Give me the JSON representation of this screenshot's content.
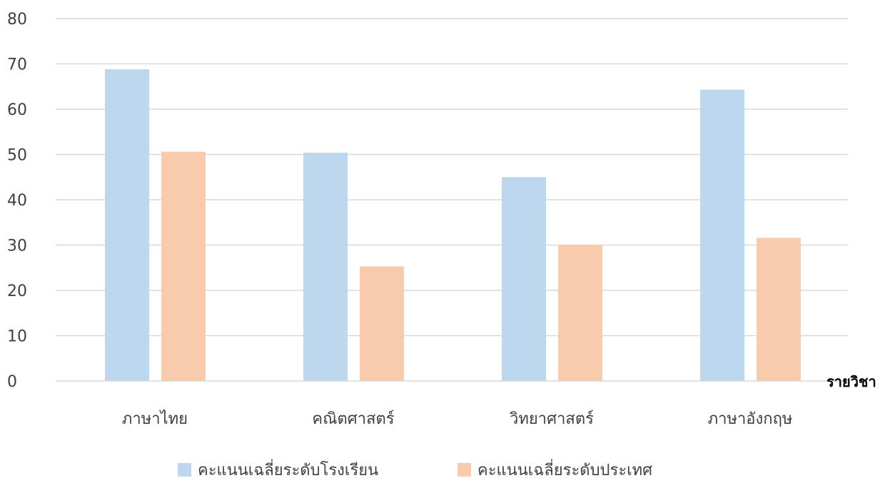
{
  "chart_data": {
    "type": "bar",
    "title": "",
    "xlabel": "รายวิชา",
    "ylabel": "",
    "ylim": [
      0,
      80
    ],
    "yticks": [
      0,
      10,
      20,
      30,
      40,
      50,
      60,
      70,
      80
    ],
    "grid": true,
    "legend_position": "bottom",
    "categories": [
      "ภาษาไทย",
      "คณิตศาสตร์",
      "วิทยาศาสตร์",
      "ภาษาอังกฤษ"
    ],
    "series": [
      {
        "name": "คะแนนเฉลี่ยระดับโรงเรียน",
        "color": "#BDD7EE",
        "values": [
          68.8,
          50.4,
          45.0,
          64.3
        ]
      },
      {
        "name": "คะแนนเฉลี่ยระดับประเทศ",
        "color": "#F8CBAD",
        "values": [
          50.6,
          25.3,
          30.0,
          31.6
        ]
      }
    ],
    "colors": {
      "grid": "#D9D9D9",
      "axis": "#D9D9D9",
      "text": "#404040"
    }
  }
}
